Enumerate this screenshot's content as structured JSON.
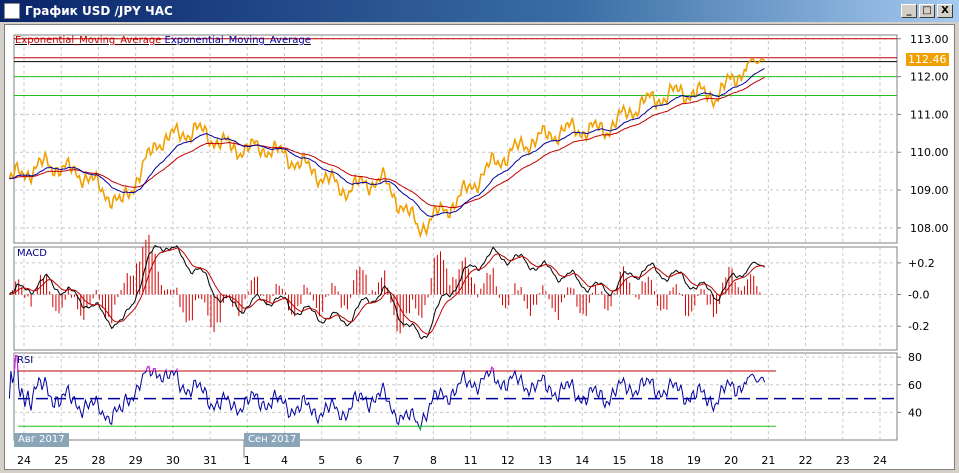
{
  "window": {
    "title": "График USD /JPY  ЧАС",
    "buttons": [
      "_",
      "□",
      "X"
    ]
  },
  "legend": {
    "ema1": "Exponential_Moving_Average",
    "ema2": "Exponential_Moving_Average",
    "ema1_color": "#c00000",
    "ema2_color": "#0000a0"
  },
  "panels": {
    "macd_label": "MACD",
    "rsi_label": "RSI"
  },
  "last_price": "112.46",
  "months": [
    "Авг 2017",
    "Сен 2017"
  ],
  "colors": {
    "price": "#f0a000",
    "ema_fast": "#0000a0",
    "ema_slow": "#c00000",
    "macd_hist": "#d00000",
    "rsi": "#0000a0",
    "rsi_over": "#e020e0",
    "rsi_under": "#20c020"
  },
  "chart_data": [
    {
      "type": "line",
      "y_ticks": [
        "113.00",
        "112.00",
        "111.00",
        "110.00",
        "109.00",
        "108.00"
      ],
      "ylim": [
        107.6,
        113.1
      ],
      "x_ticks": [
        "24",
        "25",
        "28",
        "29",
        "30",
        "31",
        "1",
        "4",
        "5",
        "6",
        "7",
        "8",
        "11",
        "12",
        "13",
        "14",
        "15",
        "18",
        "19",
        "20",
        "21",
        "22",
        "23",
        "24"
      ],
      "daily_close": [
        109.3,
        109.7,
        109.4,
        108.6,
        110.3,
        110.6,
        110.1,
        110.1,
        109.6,
        109.0,
        109.3,
        108.0,
        108.7,
        109.7,
        110.3,
        110.6,
        110.6,
        111.3,
        111.6,
        111.5,
        112.46
      ],
      "levels": {
        "red": [
          113.0,
          112.5
        ],
        "black": [
          112.45
        ],
        "green": [
          112.0,
          111.5
        ]
      }
    },
    {
      "type": "bar+line",
      "name": "MACD",
      "y_ticks": [
        "+0.2",
        "-0.0",
        "-0.2"
      ],
      "ylim": [
        -0.35,
        0.3
      ]
    },
    {
      "type": "line",
      "name": "RSI",
      "y_ticks": [
        "80",
        "60",
        "40"
      ],
      "ylim": [
        20,
        83
      ],
      "levels": [
        70,
        50,
        30
      ]
    }
  ]
}
